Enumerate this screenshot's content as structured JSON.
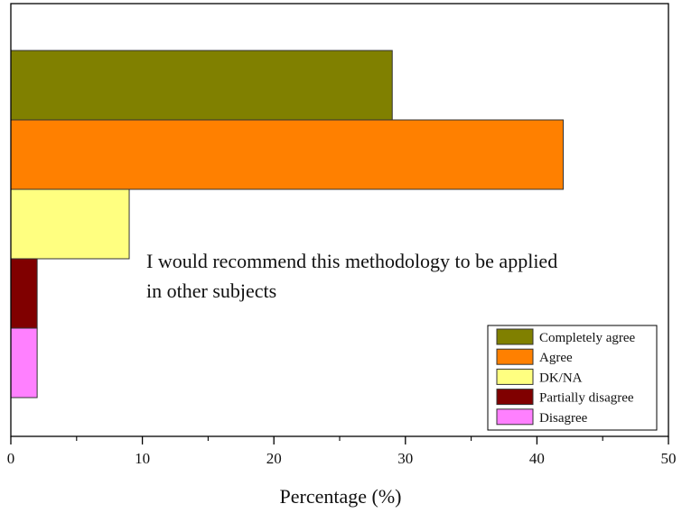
{
  "chart_data": {
    "type": "bar",
    "orientation": "horizontal",
    "title": "",
    "annotation": [
      "I would recommend this methodology to be applied",
      "in other subjects"
    ],
    "xlabel": "Percentage (%)",
    "ylabel": "",
    "xlim": [
      0,
      50
    ],
    "x_ticks": [
      0,
      10,
      20,
      30,
      40,
      50
    ],
    "x_tick_labels": [
      "0",
      "10",
      "20",
      "30",
      "40",
      "50"
    ],
    "grid": false,
    "legend_position": "bottom-right",
    "categories": [
      "Completely agree",
      "Agree",
      "DK/NA",
      "Partially disagree",
      "Disagree"
    ],
    "values": [
      29,
      42,
      9,
      2,
      2
    ],
    "colors": [
      "#808000",
      "#FF8000",
      "#FFFF80",
      "#800000",
      "#FF80FF"
    ]
  }
}
